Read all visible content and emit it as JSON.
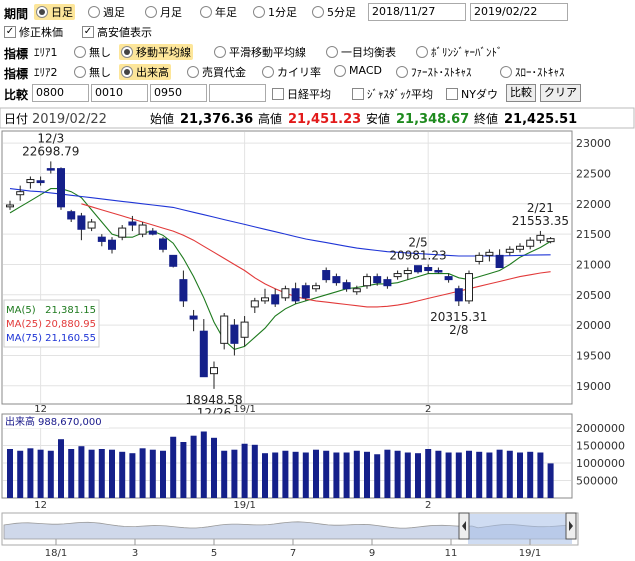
{
  "controls": {
    "period": {
      "label": "期間",
      "options": [
        "日足",
        "週足",
        "月足",
        "年足",
        "1分足",
        "5分足"
      ],
      "selected": 0,
      "from": "2018/11/27",
      "to": "2019/02/22"
    },
    "options_row": {
      "adjusted": "修正株価",
      "highlow": "高安値表示"
    },
    "indicator1": {
      "label": "指標",
      "area": "ｴﾘｱ1",
      "options": [
        "無し",
        "移動平均線",
        "平滑移動平均線",
        "一目均衡表",
        "ﾎﾞﾘﾝｼﾞｬｰﾊﾞﾝﾄﾞ"
      ],
      "selected": 1
    },
    "indicator2": {
      "label": "指標",
      "area": "ｴﾘｱ2",
      "options": [
        "無し",
        "出来高",
        "売買代金",
        "カイリ率",
        "MACD",
        "ﾌｧｰｽﾄ･ｽﾄｷｬｽ",
        "ｽﾛｰ･ｽﾄｷｬｽ"
      ],
      "selected": 1
    },
    "compare": {
      "label": "比較",
      "codes": [
        "0800",
        "0010",
        "0950",
        ""
      ],
      "checks": [
        "日経平均",
        "ｼﾞｬｽﾀﾞｯｸ平均",
        "NYダウ"
      ],
      "compare_button": "比較",
      "clear_button": "クリア"
    }
  },
  "chart_data": [
    {
      "type": "candlestick",
      "header": {
        "period": "日付",
        "date": "2019/02/22",
        "open_label": "始値",
        "open": "21,376.36",
        "high_label": "高値",
        "high": "21,451.23",
        "low_label": "安値",
        "low": "21,348.67",
        "close_label": "終値",
        "close": "21,425.51"
      },
      "ylim": [
        18700,
        23200
      ],
      "yticks": [
        19000,
        19500,
        20000,
        20500,
        21000,
        21500,
        22000,
        22500,
        23000
      ],
      "xticks": [
        {
          "index": 3,
          "label": "12"
        },
        {
          "index": 23,
          "label": "19/1"
        },
        {
          "index": 41,
          "label": "2"
        }
      ],
      "candles": [
        {
          "o": 21950,
          "h": 22050,
          "l": 21900,
          "c": 21980
        },
        {
          "o": 22150,
          "h": 22300,
          "l": 22050,
          "c": 22200
        },
        {
          "o": 22350,
          "h": 22450,
          "l": 22250,
          "c": 22400
        },
        {
          "o": 22380,
          "h": 22450,
          "l": 22300,
          "c": 22350
        },
        {
          "o": 22580,
          "h": 22698.79,
          "l": 22500,
          "c": 22570
        },
        {
          "o": 22580,
          "h": 22600,
          "l": 21900,
          "c": 21950
        },
        {
          "o": 21870,
          "h": 21900,
          "l": 21700,
          "c": 21750
        },
        {
          "o": 21800,
          "h": 21850,
          "l": 21400,
          "c": 21580
        },
        {
          "o": 21600,
          "h": 21750,
          "l": 21550,
          "c": 21700
        },
        {
          "o": 21450,
          "h": 21500,
          "l": 21300,
          "c": 21380
        },
        {
          "o": 21400,
          "h": 21450,
          "l": 21180,
          "c": 21250
        },
        {
          "o": 21450,
          "h": 21650,
          "l": 21400,
          "c": 21600
        },
        {
          "o": 21700,
          "h": 21800,
          "l": 21550,
          "c": 21650
        },
        {
          "o": 21500,
          "h": 21700,
          "l": 21450,
          "c": 21650
        },
        {
          "o": 21550,
          "h": 21600,
          "l": 21480,
          "c": 21500
        },
        {
          "o": 21420,
          "h": 21450,
          "l": 21200,
          "c": 21250
        },
        {
          "o": 21150,
          "h": 21150,
          "l": 20950,
          "c": 20970
        },
        {
          "o": 20750,
          "h": 20900,
          "l": 20300,
          "c": 20400
        },
        {
          "o": 20150,
          "h": 20250,
          "l": 19900,
          "c": 20100
        },
        {
          "o": 19900,
          "h": 20100,
          "l": 19150,
          "c": 19150
        },
        {
          "o": 19200,
          "h": 19400,
          "l": 18948.58,
          "c": 19300
        },
        {
          "o": 19700,
          "h": 20200,
          "l": 19600,
          "c": 20150
        },
        {
          "o": 20000,
          "h": 20100,
          "l": 19500,
          "c": 19700
        },
        {
          "o": 19800,
          "h": 20150,
          "l": 19650,
          "c": 20050
        },
        {
          "o": 20300,
          "h": 20450,
          "l": 20200,
          "c": 20400
        },
        {
          "o": 20400,
          "h": 20600,
          "l": 20350,
          "c": 20450
        },
        {
          "o": 20500,
          "h": 20600,
          "l": 20300,
          "c": 20350
        },
        {
          "o": 20450,
          "h": 20650,
          "l": 20400,
          "c": 20600
        },
        {
          "o": 20600,
          "h": 20700,
          "l": 20350,
          "c": 20400
        },
        {
          "o": 20650,
          "h": 20700,
          "l": 20400,
          "c": 20450
        },
        {
          "o": 20600,
          "h": 20700,
          "l": 20550,
          "c": 20650
        },
        {
          "o": 20900,
          "h": 20950,
          "l": 20700,
          "c": 20750
        },
        {
          "o": 20800,
          "h": 20850,
          "l": 20650,
          "c": 20700
        },
        {
          "o": 20700,
          "h": 20750,
          "l": 20550,
          "c": 20600
        },
        {
          "o": 20550,
          "h": 20650,
          "l": 20500,
          "c": 20600
        },
        {
          "o": 20650,
          "h": 20850,
          "l": 20600,
          "c": 20800
        },
        {
          "o": 20800,
          "h": 20850,
          "l": 20650,
          "c": 20700
        },
        {
          "o": 20750,
          "h": 20800,
          "l": 20600,
          "c": 20650
        },
        {
          "o": 20800,
          "h": 20900,
          "l": 20750,
          "c": 20850
        },
        {
          "o": 20850,
          "h": 20950,
          "l": 20750,
          "c": 20900
        },
        {
          "o": 20980,
          "h": 20981.23,
          "l": 20850,
          "c": 20880
        },
        {
          "o": 20950,
          "h": 21000,
          "l": 20850,
          "c": 20900
        },
        {
          "o": 20900,
          "h": 20950,
          "l": 20850,
          "c": 20880
        },
        {
          "o": 20800,
          "h": 20850,
          "l": 20700,
          "c": 20750
        },
        {
          "o": 20600,
          "h": 20650,
          "l": 20315.31,
          "c": 20400
        },
        {
          "o": 20400,
          "h": 20900,
          "l": 20350,
          "c": 20850
        },
        {
          "o": 21050,
          "h": 21200,
          "l": 21000,
          "c": 21150
        },
        {
          "o": 21150,
          "h": 21250,
          "l": 21050,
          "c": 21200
        },
        {
          "o": 21150,
          "h": 21250,
          "l": 20950,
          "c": 20950
        },
        {
          "o": 21200,
          "h": 21300,
          "l": 21150,
          "c": 21250
        },
        {
          "o": 21250,
          "h": 21350,
          "l": 21200,
          "c": 21300
        },
        {
          "o": 21300,
          "h": 21450,
          "l": 21250,
          "c": 21400
        },
        {
          "o": 21400,
          "h": 21553.35,
          "l": 21350,
          "c": 21480
        },
        {
          "o": 21376.36,
          "h": 21451.23,
          "l": 21348.67,
          "c": 21425.51
        }
      ],
      "ma": [
        {
          "label": "MA(5)",
          "value": "21,381.15",
          "color": "#1e7a1e",
          "values": [
            21850,
            21950,
            22050,
            22150,
            22250,
            22250,
            22200,
            22100,
            21900,
            21700,
            21500,
            21450,
            21450,
            21520,
            21550,
            21480,
            21350,
            21100,
            20800,
            20450,
            20050,
            19750,
            19600,
            19650,
            19800,
            19950,
            20150,
            20270,
            20350,
            20400,
            20450,
            20500,
            20550,
            20600,
            20620,
            20650,
            20680,
            20680,
            20700,
            20750,
            20800,
            20850,
            20850,
            20850,
            20780,
            20750,
            20800,
            20850,
            20900,
            21000,
            21120,
            21200,
            21280,
            21381
          ]
        },
        {
          "label": "MA(25)",
          "value": "20,880.95",
          "color": "#e23a3a",
          "values": [
            null,
            null,
            null,
            null,
            null,
            null,
            null,
            22000,
            21950,
            21900,
            21850,
            21800,
            21750,
            21700,
            21650,
            21600,
            21550,
            21480,
            21400,
            21300,
            21200,
            21100,
            21000,
            20900,
            20780,
            20680,
            20600,
            20530,
            20470,
            20430,
            20400,
            20380,
            20360,
            20340,
            20320,
            20300,
            20300,
            20310,
            20330,
            20360,
            20400,
            20440,
            20480,
            20520,
            20560,
            20600,
            20640,
            20680,
            20720,
            20760,
            20800,
            20830,
            20860,
            20881
          ]
        },
        {
          "label": "MA(75)",
          "value": "21,160.55",
          "color": "#1f35d6",
          "values": [
            22250,
            22230,
            22210,
            22200,
            22180,
            22160,
            22140,
            22120,
            22100,
            22080,
            22060,
            22040,
            22020,
            22000,
            21980,
            21960,
            21940,
            21900,
            21860,
            21820,
            21780,
            21740,
            21700,
            21660,
            21620,
            21580,
            21540,
            21500,
            21460,
            21420,
            21390,
            21360,
            21330,
            21300,
            21270,
            21250,
            21230,
            21210,
            21200,
            21190,
            21180,
            21170,
            21160,
            21150,
            21140,
            21140,
            21140,
            21140,
            21140,
            21145,
            21150,
            21155,
            21158,
            21160
          ]
        }
      ],
      "annotations": [
        {
          "index": 4,
          "text": [
            "12/3",
            "22698.79"
          ],
          "dir": "above"
        },
        {
          "index": 20,
          "text": [
            "18948.58",
            "12/26"
          ],
          "dir": "below"
        },
        {
          "index": 40,
          "text": [
            "2/5",
            "20981.23"
          ],
          "dir": "above"
        },
        {
          "index": 44,
          "text": [
            "20315.31",
            "2/8"
          ],
          "dir": "below"
        },
        {
          "index": 52,
          "text": [
            "2/21",
            "21553.35"
          ],
          "dir": "above"
        }
      ]
    },
    {
      "type": "bar",
      "label": "出来高",
      "last_value": "988,670,000",
      "ylim": [
        0,
        2400000
      ],
      "yticks": [
        500000,
        1000000,
        1500000,
        2000000
      ],
      "values": [
        1400000,
        1350000,
        1420000,
        1380000,
        1350000,
        1680000,
        1400000,
        1480000,
        1380000,
        1400000,
        1380000,
        1320000,
        1280000,
        1420000,
        1380000,
        1350000,
        1750000,
        1600000,
        1780000,
        1900000,
        1720000,
        1350000,
        1380000,
        1550000,
        1520000,
        1280000,
        1300000,
        1350000,
        1320000,
        1300000,
        1380000,
        1350000,
        1300000,
        1300000,
        1350000,
        1320000,
        1250000,
        1380000,
        1350000,
        1300000,
        1280000,
        1400000,
        1350000,
        1300000,
        1300000,
        1350000,
        1320000,
        1300000,
        1380000,
        1350000,
        1300000,
        1320000,
        1300000,
        988670
      ]
    },
    {
      "type": "area",
      "label": "navigator",
      "xticks": [
        "18/1",
        "3",
        "5",
        "7",
        "9",
        "11",
        "19/1"
      ]
    }
  ]
}
